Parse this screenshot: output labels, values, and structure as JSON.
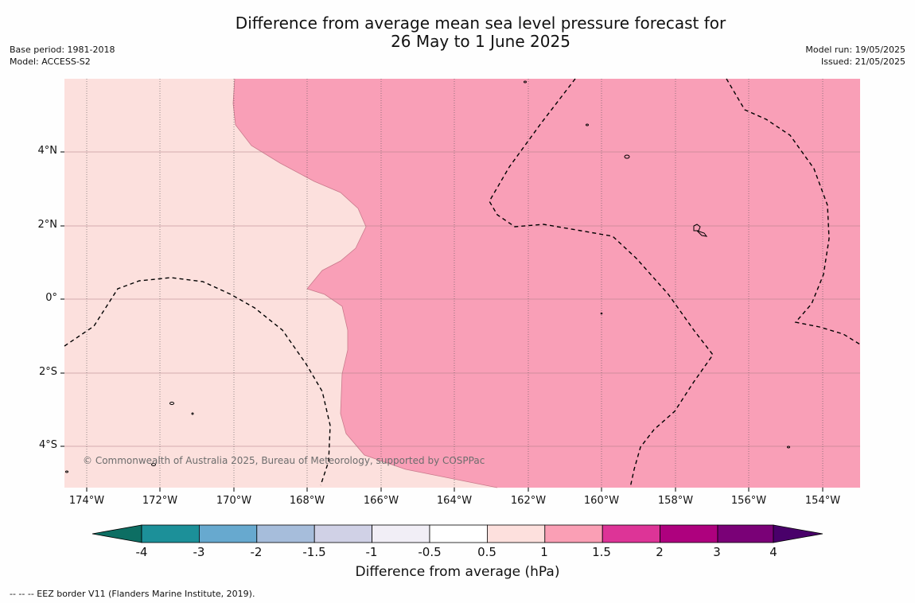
{
  "title": {
    "line1": "Difference from average mean sea level pressure forecast for",
    "line2": "26 May to 1 June 2025"
  },
  "meta": {
    "base_period": "Base period: 1981-2018",
    "model": "Model: ACCESS-S2",
    "model_run": "Model run: 19/05/2025",
    "issued": "Issued: 21/05/2025"
  },
  "map": {
    "lat_labels": [
      "4°N",
      "2°N",
      "0°",
      "2°S",
      "4°S"
    ],
    "lon_labels": [
      "174°W",
      "172°W",
      "170°W",
      "168°W",
      "166°W",
      "164°W",
      "162°W",
      "160°W",
      "158°W",
      "156°W",
      "154°W"
    ],
    "copyright": "© Commonwealth of Australia 2025, Bureau of Meteorology, supported by COSPPac",
    "fill_colors": {
      "anomaly_0_5_to_1": "#fce0dd",
      "anomaly_1_to_1_5": "#f99fb7"
    }
  },
  "colorbar": {
    "tick_labels": [
      "-4",
      "-3",
      "-2",
      "-1.5",
      "-1",
      "-0.5",
      "0.5",
      "1",
      "1.5",
      "2",
      "3",
      "4"
    ],
    "colors": [
      "#0d6e63",
      "#1c9099",
      "#67a9cf",
      "#a6bddb",
      "#d0d1e6",
      "#f1eef6",
      "#ffffff",
      "#fde0dd",
      "#fa9fb5",
      "#dd3497",
      "#ae017e",
      "#7a0177",
      "#49006a"
    ],
    "title": "Difference from average (hPa)"
  },
  "footnote": "--  --  -- EEZ border V11 (Flanders Marine Institute, 2019)."
}
